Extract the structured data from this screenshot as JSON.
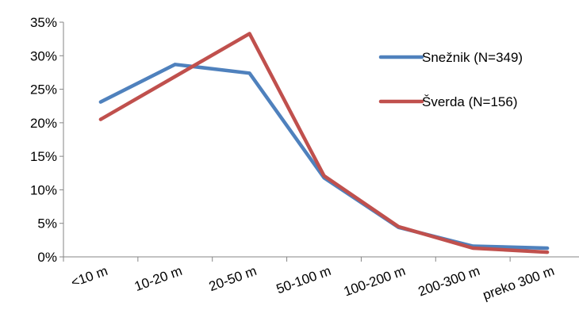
{
  "chart_data": {
    "type": "line",
    "title": "",
    "xlabel": "",
    "ylabel": "",
    "categories": [
      "<10 m",
      "10-20 m",
      "20-50 m",
      "50-100 m",
      "100-200 m",
      "200-300 m",
      "preko 300 m"
    ],
    "ylim": [
      0,
      0.35
    ],
    "yticks": [
      "0%",
      "5%",
      "10%",
      "15%",
      "20%",
      "25%",
      "30%",
      "35%"
    ],
    "ytick_values": [
      0,
      0.05,
      0.1,
      0.15,
      0.2,
      0.25,
      0.3,
      0.35
    ],
    "grid": false,
    "legend_position": "right",
    "series": [
      {
        "name": "Snežnik (N=349)",
        "color": "#4F81BD",
        "values": [
          0.231,
          0.287,
          0.274,
          0.118,
          0.044,
          0.016,
          0.013
        ]
      },
      {
        "name": "Šverda (N=156)",
        "color": "#C0504D",
        "values": [
          0.205,
          0.269,
          0.333,
          0.121,
          0.045,
          0.013,
          0.007
        ]
      }
    ]
  }
}
